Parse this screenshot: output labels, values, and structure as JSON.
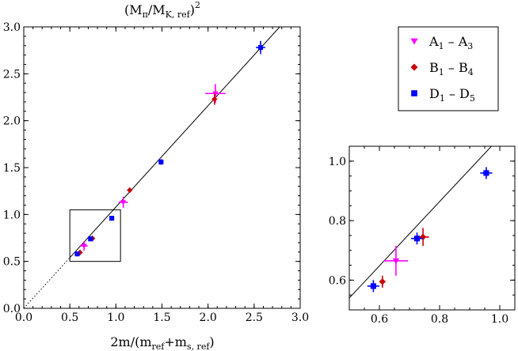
{
  "chart_data": [
    {
      "type": "scatter",
      "panel": "main",
      "xlabel": {
        "pre": "2m/(m",
        "sub1": "ref",
        "mid": "+m",
        "sub2": "s, ref",
        "post": ")"
      },
      "top_label": {
        "pre": "(M",
        "sub1": "π",
        "mid": "/M",
        "sub2": "K, ref",
        "post": ")",
        "sup": "2"
      },
      "xlim": [
        0,
        3.0
      ],
      "ylim": [
        0,
        3.0
      ],
      "xticks": [
        "0.0",
        "0.5",
        "1.0",
        "1.5",
        "2.0",
        "2.5",
        "3.0"
      ],
      "yticks": [
        "0.0",
        "0.5",
        "1.0",
        "1.5",
        "2.0",
        "2.5",
        "3.0"
      ],
      "fit_line": {
        "slope": 1.08,
        "intercept": 0.0,
        "solid_from": 0.5,
        "dotted_to": 0.5
      },
      "zoom_box": {
        "x": [
          0.5,
          1.05
        ],
        "y": [
          0.5,
          1.05
        ]
      },
      "series": [
        {
          "name": "A_1 – A_3",
          "marker": "triangle-down",
          "color": "#ff00ff",
          "points": [
            {
              "x": 0.655,
              "y": 0.665,
              "ex": 0.04,
              "ey": 0.05
            },
            {
              "x": 1.08,
              "y": 1.13,
              "ex": 0.05,
              "ey": 0.06
            },
            {
              "x": 2.08,
              "y": 2.29,
              "ex": 0.11,
              "ey": 0.1
            }
          ]
        },
        {
          "name": "B_1 – B_4",
          "marker": "diamond",
          "color": "#cc0000",
          "points": [
            {
              "x": 0.61,
              "y": 0.595,
              "ex": 0.01,
              "ey": 0.02
            },
            {
              "x": 0.745,
              "y": 0.745,
              "ex": 0.02,
              "ey": 0.03
            },
            {
              "x": 1.15,
              "y": 1.26,
              "ex": 0.01,
              "ey": 0.02
            },
            {
              "x": 2.07,
              "y": 2.23,
              "ex": 0.02,
              "ey": 0.06
            }
          ]
        },
        {
          "name": "D_1 – D_5",
          "marker": "square",
          "color": "#0000ff",
          "points": [
            {
              "x": 0.58,
              "y": 0.58,
              "ex": 0.02,
              "ey": 0.02
            },
            {
              "x": 0.725,
              "y": 0.74,
              "ex": 0.02,
              "ey": 0.02
            },
            {
              "x": 0.955,
              "y": 0.96,
              "ex": 0.02,
              "ey": 0.02
            },
            {
              "x": 1.49,
              "y": 1.56,
              "ex": 0.02,
              "ey": 0.03
            },
            {
              "x": 2.57,
              "y": 2.78,
              "ex": 0.05,
              "ey": 0.07
            }
          ]
        }
      ]
    },
    {
      "type": "scatter",
      "panel": "inset",
      "xlim": [
        0.5,
        1.05
      ],
      "ylim": [
        0.5,
        1.05
      ],
      "xticks": [
        "0.6",
        "0.8",
        "1.0"
      ],
      "yticks": [
        "0.6",
        "0.8",
        "1.0"
      ],
      "fit_line": {
        "slope": 1.08,
        "intercept": 0.0
      },
      "series": [
        {
          "name": "A_1 – A_3",
          "marker": "triangle-down",
          "color": "#ff00ff",
          "points": [
            {
              "x": 0.655,
              "y": 0.665,
              "ex": 0.04,
              "ey": 0.05
            }
          ]
        },
        {
          "name": "B_1 – B_4",
          "marker": "diamond",
          "color": "#cc0000",
          "points": [
            {
              "x": 0.61,
              "y": 0.595,
              "ex": 0.01,
              "ey": 0.02
            },
            {
              "x": 0.745,
              "y": 0.745,
              "ex": 0.02,
              "ey": 0.03
            }
          ]
        },
        {
          "name": "D_1 – D_5",
          "marker": "square",
          "color": "#0000ff",
          "points": [
            {
              "x": 0.58,
              "y": 0.58,
              "ex": 0.02,
              "ey": 0.02
            },
            {
              "x": 0.725,
              "y": 0.74,
              "ex": 0.02,
              "ey": 0.02
            },
            {
              "x": 0.955,
              "y": 0.96,
              "ex": 0.02,
              "ey": 0.02
            }
          ]
        }
      ]
    }
  ],
  "legend": [
    {
      "a": "A",
      "as": "1",
      "dash": " – ",
      "b": "A",
      "bs": "3",
      "marker": "triangle-down",
      "color": "#ff00ff"
    },
    {
      "a": "B",
      "as": "1",
      "dash": " – ",
      "b": "B",
      "bs": "4",
      "marker": "diamond",
      "color": "#cc0000"
    },
    {
      "a": "D",
      "as": "1",
      "dash": " – ",
      "b": "D",
      "bs": "5",
      "marker": "square",
      "color": "#0000ff"
    }
  ]
}
